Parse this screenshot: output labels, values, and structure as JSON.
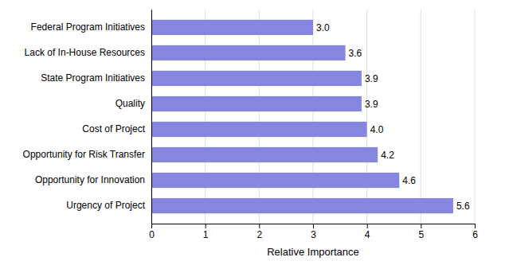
{
  "chart_data": {
    "type": "bar",
    "orientation": "horizontal",
    "categories": [
      "Urgency of Project",
      "Opportunity for Innovation",
      "Opportunity for Risk Transfer",
      "Cost of Project",
      "Quality",
      "State Program Initiatives",
      "Lack of In-House Resources",
      "Federal Program Initiatives"
    ],
    "values": [
      5.6,
      4.6,
      4.2,
      4.0,
      3.9,
      3.9,
      3.6,
      3.0
    ],
    "value_labels": [
      "5.6",
      "4.6",
      "4.2",
      "4.0",
      "3.9",
      "3.9",
      "3.6",
      "3.0"
    ],
    "data_labels": true,
    "color": "#8686e0",
    "xlabel": "Relative Importance",
    "xlim": [
      0,
      6
    ],
    "xticks": [
      0,
      1,
      2,
      3,
      4,
      5,
      6
    ],
    "grid": true
  }
}
